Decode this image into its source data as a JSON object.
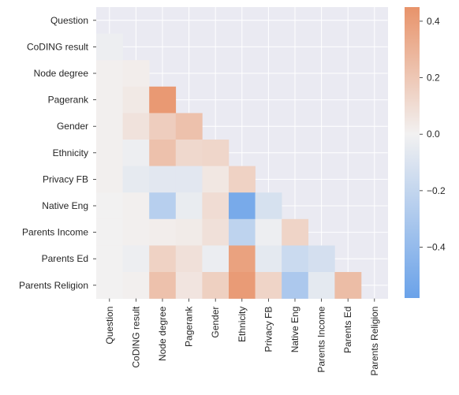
{
  "chart_data": {
    "type": "heatmap",
    "mask": "upper-triangle-including-diagonal",
    "grid": true,
    "row_labels": [
      "Question",
      "CoDING result",
      "Node degree",
      "Pagerank",
      "Gender",
      "Ethnicity",
      "Privacy FB",
      "Native Eng",
      "Parents Income",
      "Parents Ed",
      "Parents Religion"
    ],
    "col_labels": [
      "Question",
      "CoDING result",
      "Node degree",
      "Pagerank",
      "Gender",
      "Ethnicity",
      "Privacy FB",
      "Native Eng",
      "Parents Income",
      "Parents Ed",
      "Parents Religion"
    ],
    "values": [
      [
        null,
        null,
        null,
        null,
        null,
        null,
        null,
        null,
        null,
        null,
        null
      ],
      [
        -0.02,
        null,
        null,
        null,
        null,
        null,
        null,
        null,
        null,
        null,
        null
      ],
      [
        0.01,
        0.02,
        null,
        null,
        null,
        null,
        null,
        null,
        null,
        null,
        null
      ],
      [
        0.01,
        0.04,
        0.42,
        null,
        null,
        null,
        null,
        null,
        null,
        null,
        null
      ],
      [
        0.01,
        0.07,
        0.17,
        0.23,
        null,
        null,
        null,
        null,
        null,
        null,
        null
      ],
      [
        0.01,
        -0.02,
        0.23,
        0.12,
        0.13,
        null,
        null,
        null,
        null,
        null,
        null
      ],
      [
        0.01,
        -0.05,
        -0.07,
        -0.07,
        0.05,
        0.15,
        null,
        null,
        null,
        null,
        null
      ],
      [
        0.0,
        0.01,
        -0.25,
        -0.04,
        0.1,
        -0.52,
        -0.12,
        null,
        null,
        null,
        null
      ],
      [
        0.0,
        0.01,
        0.02,
        0.03,
        0.08,
        -0.22,
        -0.02,
        0.14,
        null,
        null,
        null
      ],
      [
        0.0,
        -0.02,
        0.15,
        0.08,
        -0.03,
        0.38,
        -0.06,
        -0.17,
        -0.13,
        null,
        null
      ],
      [
        0.0,
        0.01,
        0.23,
        0.06,
        0.16,
        0.41,
        0.14,
        -0.3,
        -0.06,
        0.25,
        null
      ]
    ],
    "vmin": -0.58,
    "vmax": 0.45,
    "colormap": {
      "low": "#6aa2e9",
      "mid": "#f2f1f1",
      "high": "#e8936a"
    },
    "colorbar_ticks": [
      0.4,
      0.2,
      0.0,
      -0.2,
      -0.4
    ],
    "colorbar_tick_labels": [
      "0.4",
      "0.2",
      "0.0",
      "−0.2",
      "−0.4"
    ],
    "background": "#eaeaf2"
  }
}
